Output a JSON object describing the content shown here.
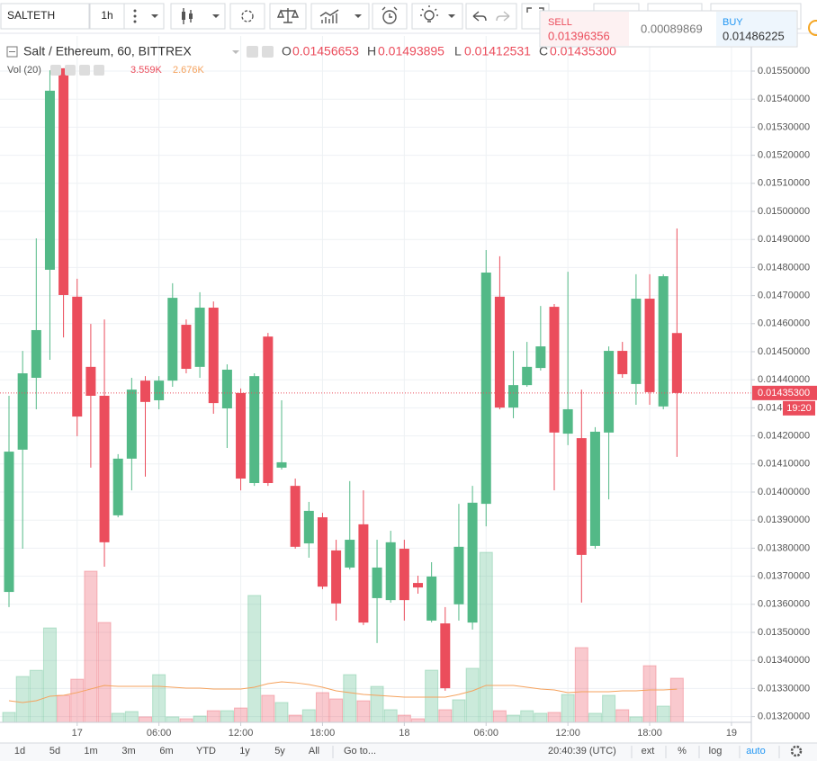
{
  "toolbar": {
    "symbol": "SALTETH",
    "interval": "1h"
  },
  "trade": {
    "sell_label": "SELL",
    "sell_price": "0.01396356",
    "spread": "0.00089869",
    "buy_label": "BUY",
    "buy_price": "0.01486225"
  },
  "legend": {
    "title": "Salt / Ethereum, 60, BITTREX",
    "open_label": "O",
    "open": "0.01456653",
    "high_label": "H",
    "high": "0.01493895",
    "low_label": "L",
    "low": "0.01412531",
    "close_label": "C",
    "close": "0.01435300",
    "volume_title": "Vol (20)"
  },
  "chart_data": {
    "type": "candlestick",
    "categories": [
      null,
      null,
      null,
      null,
      null,
      "17",
      null,
      null,
      null,
      null,
      null,
      "06:00",
      null,
      null,
      null,
      null,
      null,
      "12:00",
      null,
      null,
      null,
      null,
      null,
      "18:00",
      null,
      null,
      null,
      null,
      null,
      "18",
      null,
      null,
      null,
      null,
      null,
      "06:00",
      null,
      null,
      null,
      null,
      null,
      "12:00",
      null,
      null,
      null,
      null,
      null,
      "18:00",
      null,
      null,
      null,
      null,
      null,
      "19",
      null
    ],
    "open": [
      0.013644,
      0.014151,
      0.014407,
      0.014792,
      0.01551,
      0.014696,
      0.014446,
      0.014343,
      0.013917,
      0.014119,
      0.014397,
      0.014327,
      0.014397,
      0.014596,
      0.014446,
      0.014657,
      0.014298,
      0.014353,
      0.014032,
      0.014554,
      0.014087,
      0.014022,
      0.013817,
      0.01391,
      0.013792,
      0.013731,
      0.013885,
      0.013622,
      0.013615,
      0.013798,
      0.013676,
      0.013542,
      0.013532,
      0.0136,
      0.013535,
      0.013958,
      0.014696,
      0.014301,
      0.014381,
      0.014442,
      0.01466,
      0.014208,
      0.014192,
      0.013808,
      0.014212,
      0.014503,
      0.014385,
      0.014689,
      0.014305,
      0.01456653,
      null,
      null,
      null,
      null,
      null
    ],
    "high": [
      0.014343,
      0.014503,
      0.014904,
      0.015503,
      0.01551,
      0.01476,
      0.014599,
      0.014615,
      0.014135,
      0.014407,
      0.014413,
      0.014413,
      0.014744,
      0.014615,
      0.014712,
      0.014679,
      0.014455,
      0.014369,
      0.014423,
      0.014567,
      0.014327,
      0.014048,
      0.013965,
      0.013926,
      0.01383,
      0.014039,
      0.014006,
      0.01383,
      0.013862,
      0.01383,
      0.013702,
      0.01375,
      0.01359,
      0.013958,
      0.014022,
      0.014862,
      0.01484,
      0.014503,
      0.014535,
      0.014663,
      0.01467,
      0.014785,
      0.014365,
      0.014231,
      0.014519,
      0.014535,
      0.014776,
      0.014776,
      0.014776,
      0.01493895,
      null,
      null,
      null,
      null,
      null
    ],
    "low": [
      0.01359,
      0.013798,
      0.014295,
      0.014471,
      0.014551,
      0.014199,
      0.014087,
      0.013734,
      0.01391,
      0.014006,
      0.014055,
      0.014295,
      0.014375,
      0.014423,
      0.014407,
      0.014279,
      0.014157,
      0.014006,
      0.014022,
      0.014022,
      0.01408,
      0.013798,
      0.013766,
      0.013654,
      0.013542,
      0.013724,
      0.013526,
      0.013462,
      0.013606,
      0.013542,
      0.013638,
      0.013536,
      0.013292,
      0.013542,
      0.01351,
      0.013878,
      0.014295,
      0.014263,
      0.014375,
      0.014433,
      0.014006,
      0.014167,
      0.013606,
      0.013798,
      0.013974,
      0.014407,
      0.014311,
      0.014311,
      0.014295,
      0.01412531,
      null,
      null,
      null,
      null,
      null
    ],
    "close": [
      0.014144,
      0.014423,
      0.014577,
      0.01543,
      0.014702,
      0.014269,
      0.014343,
      0.013821,
      0.014119,
      0.014365,
      0.014321,
      0.014397,
      0.014692,
      0.014439,
      0.014657,
      0.014317,
      0.014436,
      0.014048,
      0.014413,
      0.014032,
      0.014106,
      0.013805,
      0.013933,
      0.013663,
      0.013603,
      0.01383,
      0.013535,
      0.013731,
      0.013821,
      0.013615,
      0.01366,
      0.013699,
      0.013301,
      0.013805,
      0.013962,
      0.014782,
      0.014301,
      0.014381,
      0.014446,
      0.014519,
      0.014212,
      0.014295,
      0.013776,
      0.014215,
      0.014503,
      0.01442,
      0.014689,
      0.014356,
      0.014769,
      0.014353,
      null,
      null,
      null,
      null,
      null
    ],
    "volume": [
      800,
      3700,
      4200,
      7620,
      2180,
      3480,
      12200,
      8060,
      730,
      870,
      440,
      3850,
      440,
      290,
      510,
      940,
      940,
      1160,
      10240,
      2180,
      1600,
      580,
      1020,
      2400,
      1890,
      3850,
      1740,
      2900,
      1020,
      580,
      290,
      4210,
      1020,
      1820,
      4360,
      13720,
      940,
      580,
      940,
      730,
      800,
      2250,
      6030,
      730,
      2180,
      1020,
      440,
      4570,
      1310,
      3559,
      null,
      null,
      null,
      null,
      null
    ],
    "volume_ma": [
      1740,
      1600,
      1740,
      2110,
      2180,
      2400,
      2690,
      2980,
      2900,
      2900,
      2900,
      2900,
      2830,
      2760,
      2760,
      2690,
      2690,
      2690,
      2830,
      3120,
      3270,
      3190,
      3050,
      2830,
      2540,
      2400,
      2250,
      2180,
      2110,
      2030,
      2030,
      2030,
      2030,
      2250,
      2540,
      2980,
      2980,
      2980,
      2830,
      2690,
      2610,
      2400,
      2470,
      2470,
      2470,
      2540,
      2540,
      2610,
      2610,
      2676,
      null,
      null,
      null,
      null,
      null
    ],
    "volume_value_label": "3.559K",
    "volume_ma_value_label": "2.676K",
    "last_price_label": "0.01435300",
    "countdown": "19:20",
    "ylim": [
      0.0131795,
      0.015625
    ],
    "y2lim": [
      0,
      55400
    ],
    "yticks": [
      {
        "value": 0.0132,
        "label": "0.01320000"
      },
      {
        "value": 0.0133,
        "label": "0.01330000"
      },
      {
        "value": 0.0134,
        "label": "0.01340000"
      },
      {
        "value": 0.0135,
        "label": "0.01350000"
      },
      {
        "value": 0.0136,
        "label": "0.01360000"
      },
      {
        "value": 0.0137,
        "label": "0.01370000"
      },
      {
        "value": 0.0138,
        "label": "0.01380000"
      },
      {
        "value": 0.0139,
        "label": "0.01390000"
      },
      {
        "value": 0.014,
        "label": "0.01400000"
      },
      {
        "value": 0.0141,
        "label": "0.01410000"
      },
      {
        "value": 0.0142,
        "label": "0.01420000"
      },
      {
        "value": 0.0143,
        "label": "0.01430000"
      },
      {
        "value": 0.0144,
        "label": "0.01440000"
      },
      {
        "value": 0.0145,
        "label": "0.01450000"
      },
      {
        "value": 0.0146,
        "label": "0.01460000"
      },
      {
        "value": 0.0147,
        "label": "0.01470000"
      },
      {
        "value": 0.0148,
        "label": "0.01480000"
      },
      {
        "value": 0.0149,
        "label": "0.01490000"
      },
      {
        "value": 0.015,
        "label": "0.01500000"
      },
      {
        "value": 0.0151,
        "label": "0.01510000"
      },
      {
        "value": 0.0152,
        "label": "0.01520000"
      },
      {
        "value": 0.0153,
        "label": "0.01530000"
      },
      {
        "value": 0.0154,
        "label": "0.01540000"
      },
      {
        "value": 0.0155,
        "label": "0.01550000"
      }
    ],
    "grid": true,
    "up_color": "#53b987",
    "down_color": "#eb4d5c",
    "ma_color": "#f5a25d"
  },
  "bottom_bar": {
    "ranges": [
      "1d",
      "5d",
      "1m",
      "3m",
      "6m",
      "YTD",
      "1y",
      "5y",
      "All"
    ],
    "goto": "Go to...",
    "time": "20:40:39 (UTC)",
    "options": [
      "ext",
      "%",
      "log",
      "auto"
    ]
  }
}
